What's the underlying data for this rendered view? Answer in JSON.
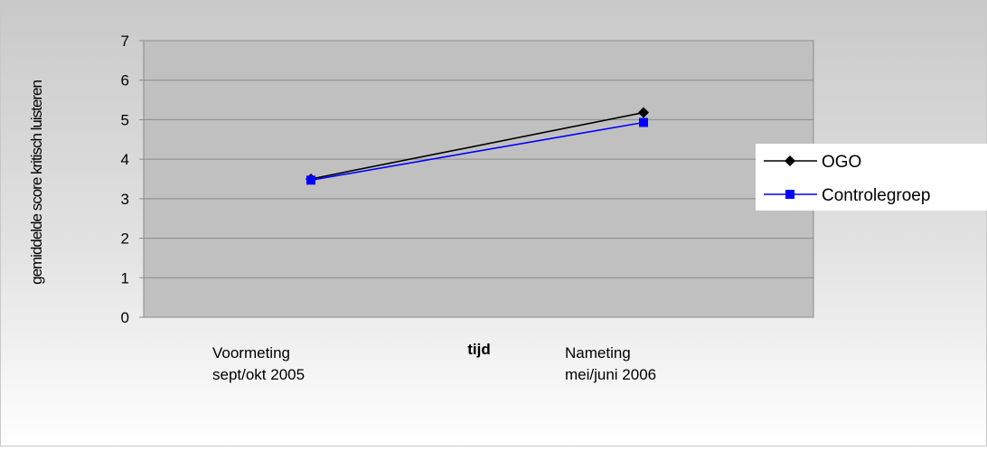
{
  "chart_data": {
    "type": "line",
    "title": "",
    "xlabel": "tijd",
    "ylabel": "gemiddelde score kritisch luisteren",
    "categories": [
      [
        "Voormeting",
        "sept/okt 2005"
      ],
      [
        "Nameting",
        "mei/juni 2006"
      ]
    ],
    "ylim": [
      0,
      7
    ],
    "yticks": [
      "0",
      "1",
      "2",
      "3",
      "4",
      "5",
      "6",
      "7"
    ],
    "grid": true,
    "legend_position": "right",
    "series": [
      {
        "name": "OGO",
        "values": [
          3.5,
          5.18
        ],
        "color": "#000000",
        "marker": "diamond"
      },
      {
        "name": "Controlegroep",
        "values": [
          3.47,
          4.93
        ],
        "color": "#0000ff",
        "marker": "square"
      }
    ]
  }
}
